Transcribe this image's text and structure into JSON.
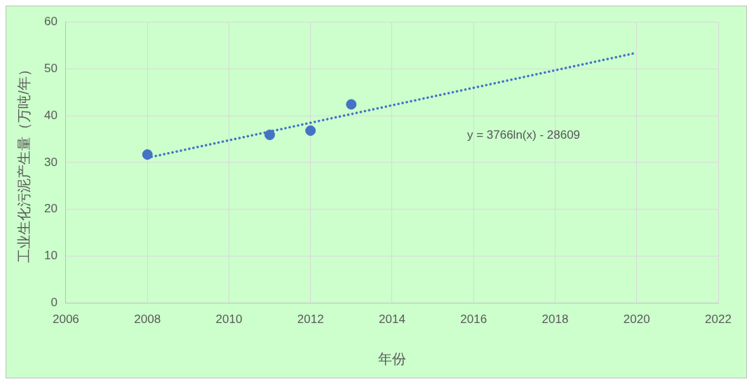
{
  "chart_data": {
    "type": "scatter",
    "xlabel": "年份",
    "ylabel": "工业生化污泥产生量（万吨/年）",
    "series": [
      {
        "color": "#4472c4",
        "x": [
          2008,
          2011,
          2012,
          2013
        ],
        "values": [
          31.7,
          35.9,
          36.8,
          42.4
        ],
        "marker": "circle"
      },
      {
        "type": "line",
        "color": "#4472c4",
        "line_style": "dotted",
        "marker": "none",
        "x": [
          2008,
          2011,
          2014,
          2017,
          2020
        ],
        "values": [
          31.0,
          36.6,
          42.2,
          47.8,
          53.4
        ]
      }
    ],
    "xlim": [
      2006,
      2022
    ],
    "xticks": [
      2006,
      2008,
      2010,
      2012,
      2014,
      2016,
      2018,
      2020,
      2022
    ],
    "ylim": [
      0,
      60
    ],
    "yticks": [
      0,
      10,
      20,
      30,
      40,
      50,
      60
    ],
    "grid": true,
    "legend": false,
    "annotations": [
      "y = 3766ln(x) - 28609"
    ]
  }
}
